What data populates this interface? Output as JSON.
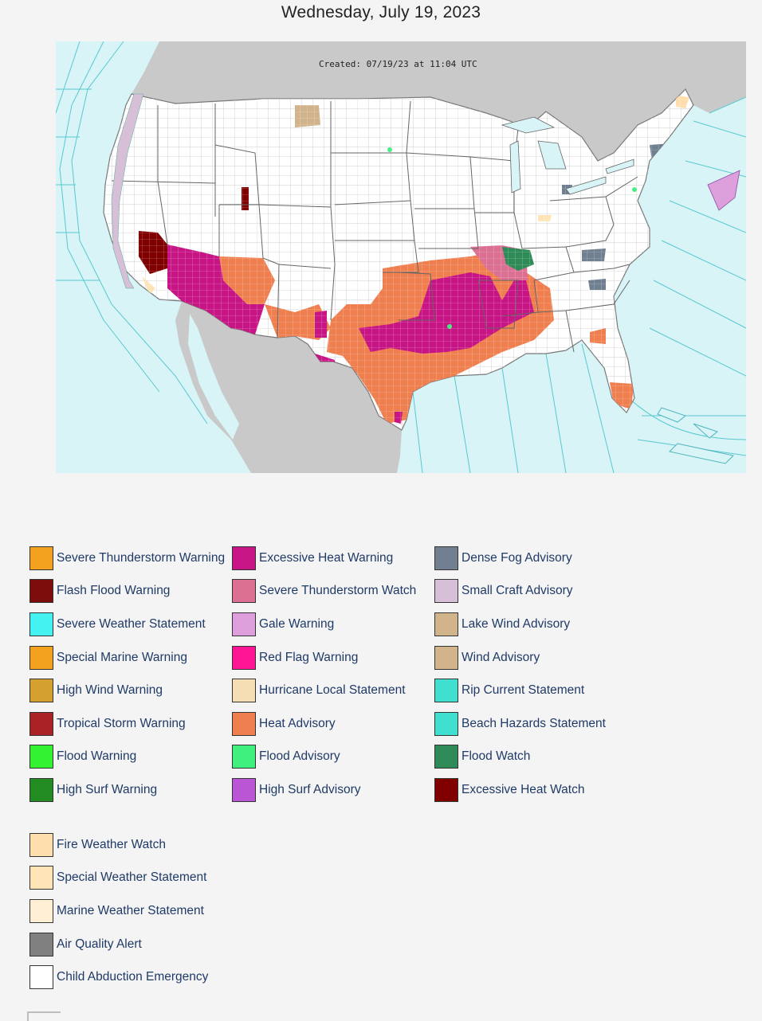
{
  "page": {
    "date": "Wednesday, July 19, 2023"
  },
  "map": {
    "created_label": "Created: 07/19/23 at 11:04 UTC",
    "colors": {
      "ocean": "#d8f4f7",
      "land_foreign": "#c9c9c9",
      "land_us": "#ffffff",
      "county_lines": "#b9b9b9",
      "marine_zone_lines": "#58c8d0"
    }
  },
  "legend": {
    "col1": [
      {
        "label": "Severe Thunderstorm Warning",
        "color": "#f2a21f"
      },
      {
        "label": "Flash Flood Warning",
        "color": "#7d0d0d"
      },
      {
        "label": "Severe Weather Statement",
        "color": "#44f2f2"
      },
      {
        "label": "Special Marine Warning",
        "color": "#f2a21f"
      },
      {
        "label": "High Wind Warning",
        "color": "#d4a130"
      },
      {
        "label": "Tropical Storm Warning",
        "color": "#ab2226"
      },
      {
        "label": "Flood Warning",
        "color": "#32f232"
      },
      {
        "label": "High Surf Warning",
        "color": "#228b22"
      }
    ],
    "col2": [
      {
        "label": "Excessive Heat Warning",
        "color": "#c71585"
      },
      {
        "label": "Severe Thunderstorm Watch",
        "color": "#db7093"
      },
      {
        "label": "Gale Warning",
        "color": "#dda0dd"
      },
      {
        "label": "Red Flag Warning",
        "color": "#ff1493"
      },
      {
        "label": "Hurricane Local Statement",
        "color": "#f5deb3"
      },
      {
        "label": "Heat Advisory",
        "color": "#f07f50"
      },
      {
        "label": "Flood Advisory",
        "color": "#3ff07f"
      },
      {
        "label": "High Surf Advisory",
        "color": "#ba55d3"
      }
    ],
    "col3": [
      {
        "label": "Dense Fog Advisory",
        "color": "#708090"
      },
      {
        "label": "Small Craft Advisory",
        "color": "#d8bfd8"
      },
      {
        "label": "Lake Wind Advisory",
        "color": "#d2b48c"
      },
      {
        "label": "Wind Advisory",
        "color": "#d2b48c"
      },
      {
        "label": "Rip Current Statement",
        "color": "#40e0d0"
      },
      {
        "label": "Beach Hazards Statement",
        "color": "#40e0d0"
      },
      {
        "label": "Flood Watch",
        "color": "#2e8b57"
      },
      {
        "label": "Excessive Heat Watch",
        "color": "#800000"
      }
    ],
    "col4": [
      {
        "label": "Fire Weather Watch",
        "color": "#ffdead"
      },
      {
        "label": "Special Weather Statement",
        "color": "#ffe4b5"
      },
      {
        "label": "Marine Weather Statement",
        "color": "#ffefd5"
      },
      {
        "label": "Air Quality Alert",
        "color": "#808080"
      },
      {
        "label": "Child Abduction Emergency",
        "color": "#ffffff"
      }
    ]
  }
}
